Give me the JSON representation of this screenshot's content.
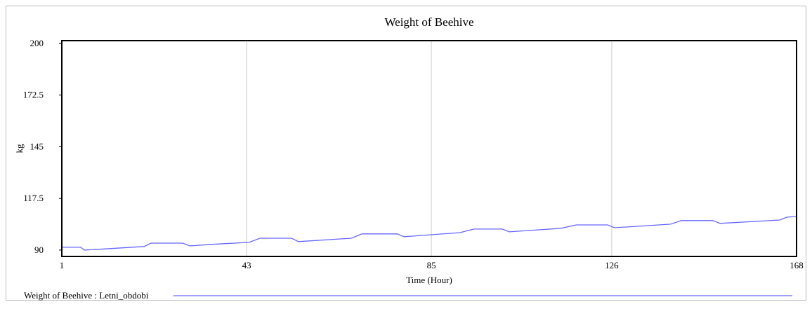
{
  "chart_data": {
    "type": "line",
    "title": "Weight of Beehive",
    "xlabel": "Time (Hour)",
    "ylabel": "kg",
    "xlim": [
      1,
      168
    ],
    "xticks": [
      1,
      43,
      85,
      126,
      168
    ],
    "ylim": [
      86.6,
      201.5
    ],
    "yticks": [
      90,
      117.5,
      145,
      172.5,
      200
    ],
    "grid": "x",
    "legend": "bottom",
    "x": [
      1,
      5.3,
      6.1,
      9.3,
      19.7,
      21.3,
      28.5,
      30.1,
      34.8,
      43.6,
      46.0,
      53.2,
      54.8,
      66.8,
      69.2,
      77.2,
      78.8,
      91.5,
      94.7,
      101.1,
      102.7,
      114.5,
      117.9,
      125.1,
      126.6,
      139.4,
      141.8,
      149.0,
      150.6,
      164.2,
      165.8,
      168
    ],
    "series": [
      {
        "name": "Weight of Beehive : Letni_obdobi",
        "color": "#6666ff",
        "values": [
          91.5,
          91.5,
          90,
          90.4,
          91.9,
          93.7,
          93.7,
          92.2,
          93.0,
          94.1,
          96.3,
          96.3,
          94.5,
          96.3,
          98.6,
          98.6,
          97.1,
          99.3,
          101.2,
          101.2,
          99.7,
          101.6,
          103.4,
          103.4,
          101.9,
          103.8,
          105.7,
          105.7,
          104.2,
          106.0,
          107.5,
          107.9
        ]
      }
    ]
  }
}
